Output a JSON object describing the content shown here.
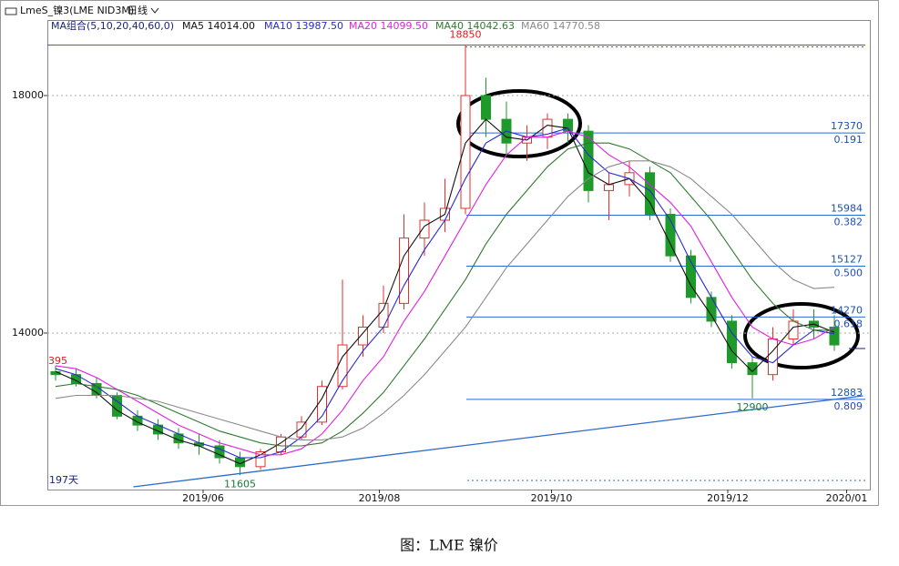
{
  "chart_data": {
    "type": "candlestick",
    "header": "LmeS_镍3(LME NID3M)",
    "period": "日线",
    "ma_legend_title": "MA组合(5,10,20,40,60,0)",
    "caption": "图：LME 镍价",
    "xlim": [
      0,
      200
    ],
    "ylim": [
      11364,
      19272
    ],
    "yticks": [
      18000,
      14000
    ],
    "xticks": [
      {
        "value": 38,
        "label": "2019/06"
      },
      {
        "value": 81,
        "label": "2019/08"
      },
      {
        "value": 123,
        "label": "2019/10"
      },
      {
        "value": 166,
        "label": "2019/12"
      },
      {
        "value": 195,
        "label": "2020/01"
      }
    ],
    "grid": true,
    "up_color": "#e03030",
    "down_color": "#1e9a2a",
    "candles": {
      "x": [
        2,
        7,
        12,
        17,
        22,
        27,
        32,
        37,
        42,
        47,
        52,
        57,
        62,
        67,
        72,
        77,
        82,
        87,
        92,
        97,
        102,
        107,
        112,
        117,
        122,
        127,
        132,
        137,
        142,
        147,
        152,
        157,
        162,
        167,
        172,
        177,
        182,
        187,
        192
      ],
      "open": [
        13350,
        13300,
        13150,
        12950,
        12600,
        12450,
        12300,
        12150,
        12100,
        11900,
        11750,
        12000,
        12250,
        12500,
        13100,
        13800,
        14100,
        14500,
        15600,
        15900,
        16100,
        18000,
        17600,
        17200,
        17300,
        17600,
        17400,
        16400,
        16500,
        16700,
        16000,
        15300,
        14600,
        14200,
        13500,
        13300,
        13900,
        14200,
        14100
      ],
      "high": [
        13450,
        13395,
        13250,
        13000,
        12700,
        12550,
        12400,
        12300,
        12200,
        12000,
        12050,
        12300,
        12600,
        13200,
        14900,
        14300,
        14800,
        16000,
        16200,
        16600,
        18850,
        18300,
        17900,
        17500,
        17700,
        17700,
        17500,
        16700,
        16900,
        16800,
        16100,
        15400,
        14700,
        14300,
        13600,
        14100,
        14400,
        14400,
        14300
      ],
      "low": [
        13200,
        13100,
        12900,
        12550,
        12350,
        12200,
        12050,
        11950,
        11800,
        11605,
        11700,
        11950,
        12200,
        12450,
        13050,
        13600,
        14000,
        14400,
        15300,
        15700,
        16000,
        17300,
        17000,
        16900,
        17100,
        17200,
        16200,
        15900,
        16300,
        15900,
        15200,
        14500,
        14100,
        13400,
        12900,
        13200,
        13800,
        13900,
        13700
      ],
      "close": [
        13300,
        13150,
        12950,
        12600,
        12450,
        12300,
        12150,
        12100,
        11900,
        11750,
        12000,
        12250,
        12500,
        13100,
        13800,
        14100,
        14500,
        15600,
        15900,
        16100,
        18000,
        17600,
        17200,
        17300,
        17600,
        17400,
        16400,
        16500,
        16700,
        16000,
        15300,
        14600,
        14200,
        13500,
        13300,
        13900,
        14200,
        14100,
        13800
      ]
    },
    "series": [
      {
        "name": "MA5 14014.00",
        "color": "#111111",
        "values": [
          13350,
          13200,
          13000,
          12700,
          12500,
          12350,
          12200,
          12100,
          11950,
          11800,
          11950,
          12150,
          12400,
          12900,
          13600,
          14000,
          14400,
          15300,
          15800,
          16000,
          17200,
          17600,
          17300,
          17250,
          17500,
          17450,
          16700,
          16500,
          16600,
          16200,
          15500,
          14800,
          14300,
          13700,
          13350,
          13700,
          14100,
          14150,
          14014
        ]
      },
      {
        "name": "MA10 13987.50",
        "color": "#2a2ad0",
        "values": [
          13400,
          13300,
          13100,
          12850,
          12600,
          12450,
          12300,
          12150,
          12050,
          11900,
          11900,
          12000,
          12250,
          12600,
          13200,
          13700,
          14100,
          14800,
          15400,
          15900,
          16600,
          17200,
          17400,
          17300,
          17350,
          17450,
          17000,
          16700,
          16600,
          16400,
          15900,
          15200,
          14600,
          14000,
          13600,
          13500,
          13800,
          14050,
          13987
        ]
      },
      {
        "name": "MA20 14099.50",
        "color": "#e020e0",
        "values": [
          13450,
          13400,
          13250,
          13050,
          12850,
          12650,
          12450,
          12300,
          12150,
          12050,
          11950,
          11950,
          12050,
          12300,
          12700,
          13200,
          13600,
          14200,
          14700,
          15300,
          15900,
          16500,
          17000,
          17300,
          17300,
          17400,
          17300,
          17000,
          16800,
          16500,
          16200,
          15800,
          15200,
          14600,
          14100,
          13900,
          13800,
          13900,
          14100
        ]
      },
      {
        "name": "MA40 14042.63",
        "color": "#2f7a2f",
        "values": [
          13100,
          13150,
          13100,
          13050,
          12950,
          12800,
          12650,
          12500,
          12350,
          12250,
          12150,
          12100,
          12100,
          12150,
          12350,
          12650,
          13000,
          13450,
          13900,
          14400,
          14900,
          15500,
          16000,
          16400,
          16800,
          17100,
          17200,
          17200,
          17100,
          16900,
          16700,
          16300,
          15900,
          15400,
          14900,
          14500,
          14200,
          14050,
          14043
        ]
      },
      {
        "name": "MA60 14770.58",
        "color": "#8a8a8a",
        "values": [
          12900,
          12950,
          12950,
          12950,
          12900,
          12850,
          12750,
          12650,
          12550,
          12450,
          12350,
          12250,
          12200,
          12200,
          12250,
          12400,
          12650,
          12950,
          13300,
          13700,
          14100,
          14600,
          15100,
          15500,
          15900,
          16300,
          16600,
          16800,
          16900,
          16900,
          16800,
          16600,
          16300,
          16000,
          15600,
          15200,
          14900,
          14750,
          14771
        ]
      }
    ],
    "fib_levels": [
      {
        "value": 17370,
        "ratio": 0.191
      },
      {
        "value": 15984,
        "ratio": 0.382
      },
      {
        "value": 15127,
        "ratio": {
          "value": 0.5,
          "label": "0.500"
        }
      },
      {
        "value": 14270,
        "ratio": 0.618
      },
      {
        "value": 12883,
        "ratio": 0.809
      }
    ],
    "trendline": {
      "x": [
        21,
        199
      ],
      "y": [
        11410,
        12943
      ]
    },
    "annotations": [
      "395",
      "197天"
    ]
  }
}
